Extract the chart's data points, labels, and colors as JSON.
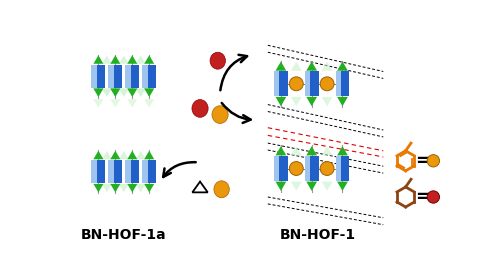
{
  "label_left": "BN-HOF-1a",
  "label_right": "BN-HOF-1",
  "label_fontsize": 10,
  "label_fontweight": "bold",
  "bg_color": "#ffffff",
  "blue_dark": "#2060c8",
  "blue_light": "#a0c4f0",
  "green_dark": "#22b022",
  "green_ghost": "#c8f0c8",
  "orange_ball": "#e8980a",
  "red_ball": "#c02020",
  "dashed_red": "#e00000",
  "toluene_color": "#e87800",
  "mch_color": "#8B4513",
  "fig_width": 5.0,
  "fig_height": 2.62,
  "dpi": 100
}
